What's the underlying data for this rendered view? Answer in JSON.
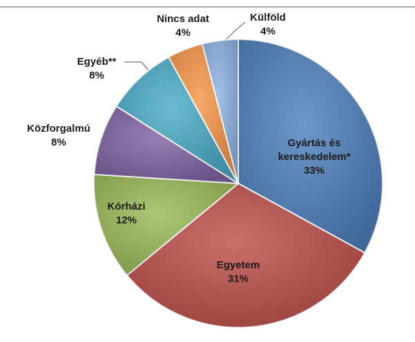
{
  "chart_data": {
    "type": "pie",
    "categories": [
      "Gyártás és kereskedelem*",
      "Egyetem",
      "Kórházi",
      "Közforgalmú",
      "Egyéb**",
      "Nincs adat",
      "Külföld"
    ],
    "values": [
      33,
      31,
      12,
      8,
      8,
      4,
      4
    ],
    "value_labels": [
      "33%",
      "31%",
      "12%",
      "8%",
      "8%",
      "4%",
      "4%"
    ],
    "colors": [
      "#4f81bd",
      "#c0504d",
      "#9bbb59",
      "#8064a2",
      "#4bacc6",
      "#f79646",
      "#8eb4e3"
    ]
  }
}
